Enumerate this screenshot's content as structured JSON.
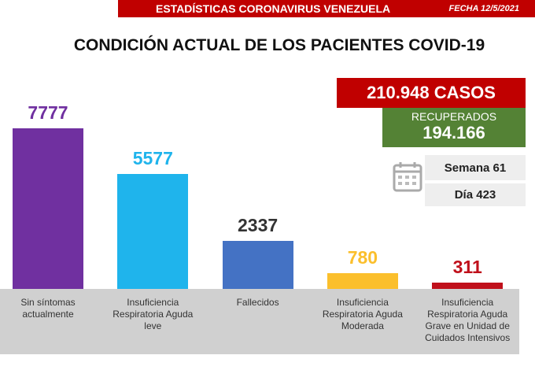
{
  "header": {
    "title": "ESTADÍSTICAS CORONAVIRUS VENEZUELA",
    "date": "FECHA 12/5/2021"
  },
  "summary": {
    "cases": "210.948 CASOS",
    "recovered_label": "RECUPERADOS",
    "recovered": "194.166",
    "week": "Semana 61",
    "day": "Día 423"
  },
  "chart_data": {
    "type": "bar",
    "title": "CONDICIÓN ACTUAL DE LOS PACIENTES COVID-19",
    "categories": [
      "Sin síntomas actualmente",
      "Insuficiencia Respiratoria Aguda leve",
      "Fallecidos",
      "Insuficiencia Respiratoria Aguda Moderada",
      "Insuficiencia Respiratoria Aguda Grave en Unidad de Cuidados Intensivos"
    ],
    "values": [
      7777,
      5577,
      2337,
      780,
      311
    ],
    "colors": [
      "#7030a0",
      "#1fb4ec",
      "#4472c4",
      "#fbbf2c",
      "#c0101b"
    ],
    "label_colors": [
      "#7030a0",
      "#1fb4ec",
      "#333333",
      "#fbbf2c",
      "#c0101b"
    ]
  }
}
